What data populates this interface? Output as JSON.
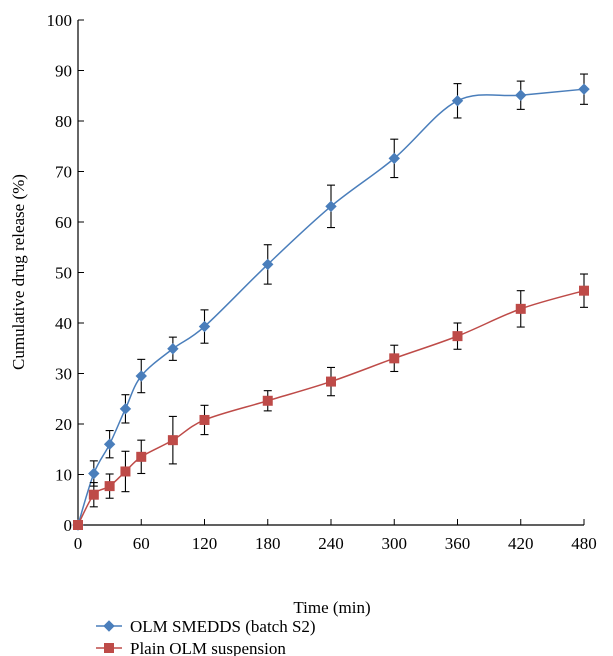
{
  "chart_data": {
    "type": "line",
    "title": "",
    "xlabel": "Time (min)",
    "ylabel": "Cumulative drug release (%)",
    "xlim": [
      0,
      480
    ],
    "ylim": [
      0,
      100
    ],
    "x_ticks": [
      0,
      60,
      120,
      180,
      240,
      300,
      360,
      420,
      480
    ],
    "y_ticks": [
      0,
      10,
      20,
      30,
      40,
      50,
      60,
      70,
      80,
      90,
      100
    ],
    "grid": false,
    "legend_position": "bottom-left",
    "series": [
      {
        "name": "OLM SMEDDS (batch S2)",
        "color": "#4a7ebb",
        "marker": "diamond",
        "x": [
          0,
          15,
          30,
          45,
          60,
          90,
          120,
          180,
          240,
          300,
          360,
          420,
          480
        ],
        "y": [
          0,
          10.2,
          16.0,
          23.0,
          29.5,
          34.9,
          39.3,
          51.6,
          63.1,
          72.6,
          84.0,
          85.1,
          86.3
        ],
        "err": [
          0,
          2.5,
          2.7,
          2.8,
          3.3,
          2.3,
          3.3,
          3.9,
          4.2,
          3.8,
          3.4,
          2.8,
          3.0
        ]
      },
      {
        "name": "Plain OLM suspension",
        "color": "#be4b48",
        "marker": "square",
        "x": [
          0,
          15,
          30,
          45,
          60,
          90,
          120,
          180,
          240,
          300,
          360,
          420,
          480
        ],
        "y": [
          0,
          6.0,
          7.7,
          10.6,
          13.5,
          16.8,
          20.8,
          24.6,
          28.4,
          33.0,
          37.4,
          42.8,
          46.4
        ],
        "err": [
          0,
          2.4,
          2.4,
          4.0,
          3.3,
          4.7,
          2.9,
          2.0,
          2.8,
          2.6,
          2.6,
          3.6,
          3.3
        ]
      }
    ]
  }
}
